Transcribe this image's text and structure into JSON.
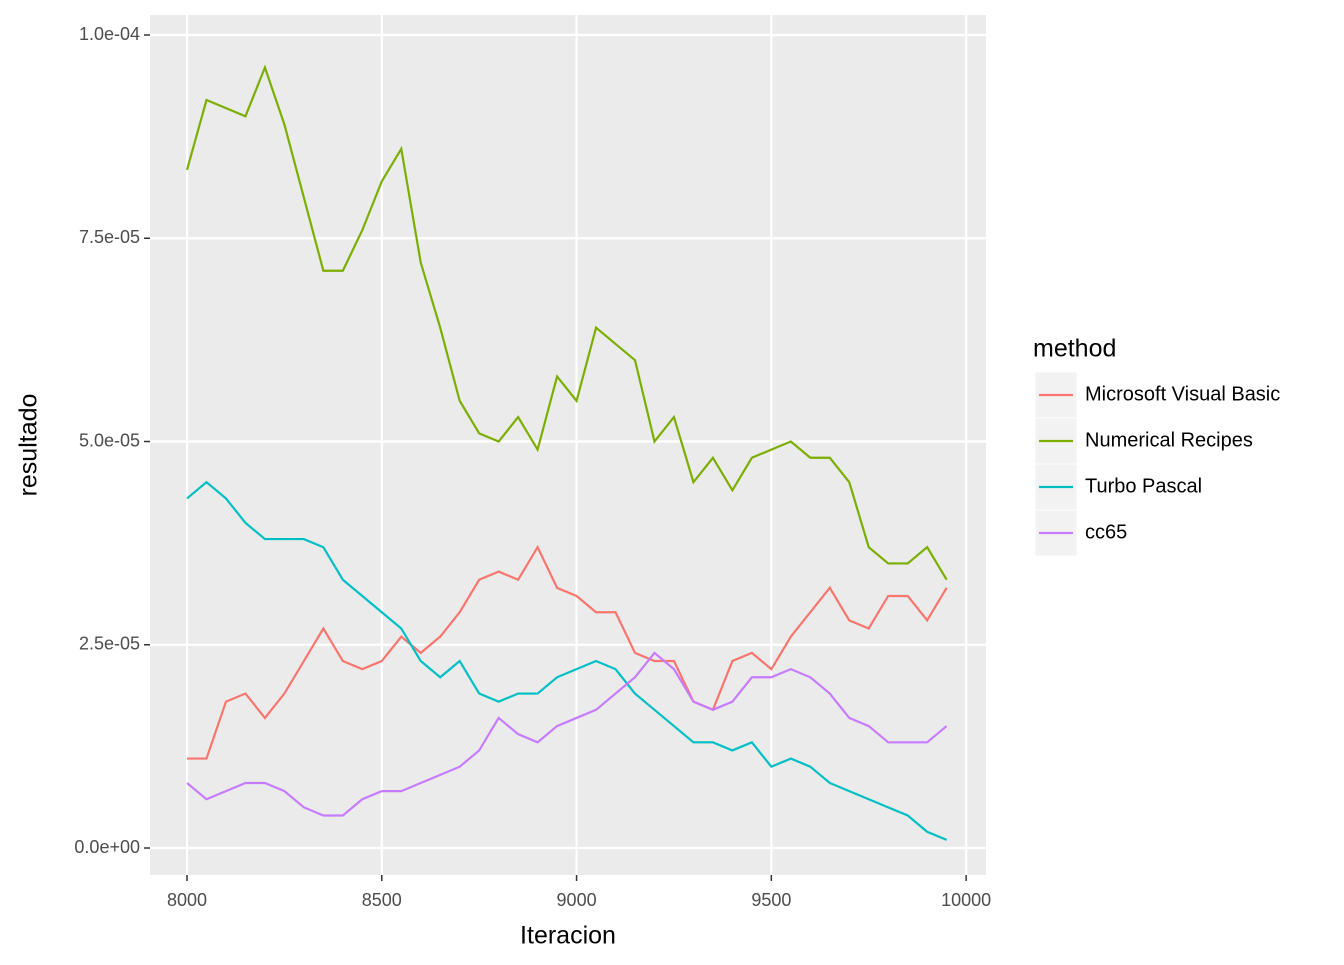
{
  "chart_data": {
    "type": "line",
    "x_label": "Iteracion",
    "y_label": "resultado",
    "x": [
      8000,
      8050,
      8100,
      8150,
      8200,
      8250,
      8300,
      8350,
      8400,
      8450,
      8500,
      8550,
      8600,
      8650,
      8700,
      8750,
      8800,
      8850,
      8900,
      8950,
      9000,
      9050,
      9100,
      9150,
      9200,
      9250,
      9300,
      9350,
      9400,
      9450,
      9500,
      9550,
      9600,
      9650,
      9700,
      9750,
      9800,
      9850,
      9900,
      9950
    ],
    "series": [
      {
        "name": "Microsoft Visual Basic",
        "color": "#f8766d",
        "values": [
          1.1e-05,
          1.1e-05,
          1.8e-05,
          1.9e-05,
          1.6e-05,
          1.9e-05,
          2.3e-05,
          2.7e-05,
          2.3e-05,
          2.2e-05,
          2.3e-05,
          2.6e-05,
          2.4e-05,
          2.6e-05,
          2.9e-05,
          3.3e-05,
          3.4e-05,
          3.3e-05,
          3.7e-05,
          3.2e-05,
          3.1e-05,
          2.9e-05,
          2.9e-05,
          2.4e-05,
          2.3e-05,
          2.3e-05,
          1.8e-05,
          1.7e-05,
          2.3e-05,
          2.4e-05,
          2.2e-05,
          2.6e-05,
          2.9e-05,
          3.2e-05,
          2.8e-05,
          2.7e-05,
          3.1e-05,
          3.1e-05,
          2.8e-05,
          3.2e-05
        ]
      },
      {
        "name": "Numerical Recipes",
        "color": "#7cae00",
        "values": [
          8.34e-05,
          9.2e-05,
          9.1e-05,
          9e-05,
          9.6e-05,
          8.9e-05,
          8e-05,
          7.1e-05,
          7.1e-05,
          7.6e-05,
          8.2e-05,
          8.6e-05,
          7.2e-05,
          6.4e-05,
          5.5e-05,
          5.1e-05,
          5e-05,
          5.3e-05,
          4.9e-05,
          5.8e-05,
          5.5e-05,
          6.4e-05,
          6.2e-05,
          6e-05,
          5e-05,
          5.3e-05,
          4.5e-05,
          4.8e-05,
          4.4e-05,
          4.8e-05,
          4.9e-05,
          5e-05,
          4.8e-05,
          4.8e-05,
          4.5e-05,
          3.7e-05,
          3.5e-05,
          3.5e-05,
          3.7e-05,
          3.3e-05
        ]
      },
      {
        "name": "Turbo Pascal",
        "color": "#00bfc4",
        "values": [
          4.3e-05,
          4.5e-05,
          4.3e-05,
          4e-05,
          3.8e-05,
          3.8e-05,
          3.8e-05,
          3.7e-05,
          3.3e-05,
          3.1e-05,
          2.9e-05,
          2.7e-05,
          2.3e-05,
          2.1e-05,
          2.3e-05,
          1.9e-05,
          1.8e-05,
          1.9e-05,
          1.9e-05,
          2.1e-05,
          2.2e-05,
          2.3e-05,
          2.2e-05,
          1.9e-05,
          1.7e-05,
          1.5e-05,
          1.3e-05,
          1.3e-05,
          1.2e-05,
          1.3e-05,
          1e-05,
          1.1e-05,
          1e-05,
          8e-06,
          7e-06,
          6e-06,
          5e-06,
          4e-06,
          2e-06,
          1e-06
        ]
      },
      {
        "name": "cc65",
        "color": "#c77cff",
        "values": [
          8e-06,
          6e-06,
          7e-06,
          8e-06,
          8e-06,
          7e-06,
          5e-06,
          4e-06,
          4e-06,
          6e-06,
          7e-06,
          7e-06,
          8e-06,
          9e-06,
          1e-05,
          1.2e-05,
          1.6e-05,
          1.4e-05,
          1.3e-05,
          1.5e-05,
          1.6e-05,
          1.7e-05,
          1.9e-05,
          2.1e-05,
          2.4e-05,
          2.2e-05,
          1.8e-05,
          1.7e-05,
          1.8e-05,
          2.1e-05,
          2.1e-05,
          2.2e-05,
          2.1e-05,
          1.9e-05,
          1.6e-05,
          1.5e-05,
          1.3e-05,
          1.3e-05,
          1.3e-05,
          1.5e-05
        ]
      }
    ],
    "xlim": [
      7905,
      10051
    ],
    "xticks": [
      8000,
      8500,
      9000,
      9500,
      10000
    ],
    "ylim": [
      -3.32e-06,
      0.00010246
    ],
    "yticks": [
      {
        "value": 0,
        "label": "0.0e+00"
      },
      {
        "value": 2.5e-05,
        "label": "2.5e-05"
      },
      {
        "value": 5e-05,
        "label": "5.0e-05"
      },
      {
        "value": 7.5e-05,
        "label": "7.5e-05"
      },
      {
        "value": 0.0001,
        "label": "1.0e-04"
      }
    ],
    "grid": true,
    "legend_title": "method",
    "legend_position": "right"
  }
}
